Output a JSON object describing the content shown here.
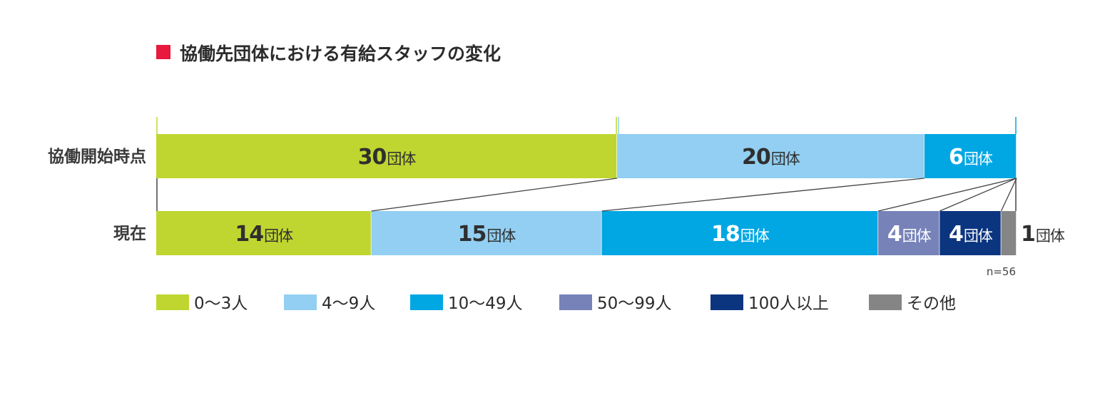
{
  "title": "協働先団体における有給スタッフの変化",
  "colors": {
    "title_marker": "#e8183e",
    "connector": "#444444"
  },
  "chart_data": {
    "type": "bar",
    "orientation": "horizontal",
    "stacked": true,
    "title": "協働先団体における有給スタッフの変化",
    "unit": "団体",
    "rows": [
      "協働開始時点",
      "現在"
    ],
    "total": 56,
    "note": "n=56",
    "series": [
      {
        "name": "0〜3人",
        "color": "#bfd630",
        "values": [
          30,
          14
        ]
      },
      {
        "name": "4〜9人",
        "color": "#92cff2",
        "values": [
          20,
          15
        ]
      },
      {
        "name": "10〜49人",
        "color": "#00a7e3",
        "values": [
          6,
          18
        ]
      },
      {
        "name": "50〜99人",
        "color": "#7682b8",
        "values": [
          0,
          4
        ]
      },
      {
        "name": "100人以上",
        "color": "#0c3580",
        "values": [
          0,
          4
        ]
      },
      {
        "name": "その他",
        "color": "#858585",
        "values": [
          0,
          1
        ]
      }
    ],
    "legend_position": "bottom"
  }
}
